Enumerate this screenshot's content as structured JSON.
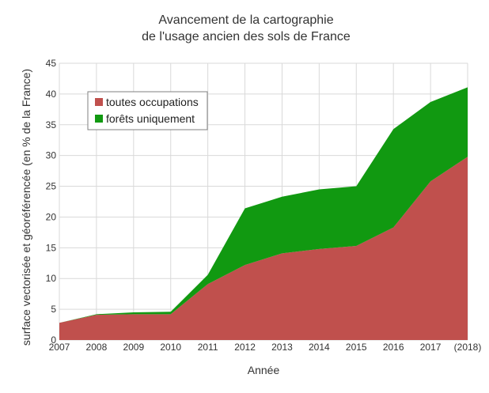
{
  "chart_data": {
    "type": "area",
    "stacked": true,
    "title": "Avancement de la cartographie",
    "subtitle": "de l'usage ancien des sols de France",
    "xlabel": "Année",
    "ylabel": "surface vectorisée et géoréférencée (en % de la France)",
    "categories": [
      "2007",
      "2008",
      "2009",
      "2010",
      "2011",
      "2012",
      "2013",
      "2014",
      "2015",
      "2016",
      "2017",
      "(2018)"
    ],
    "y_ticks": [
      "0",
      "5",
      "10",
      "15",
      "20",
      "25",
      "30",
      "35",
      "40",
      "45"
    ],
    "ylim": [
      0,
      45
    ],
    "grid": true,
    "legend_position": "top-left",
    "series": [
      {
        "name": "toutes occupations",
        "color": "#c0504d",
        "values": [
          2.8,
          4.1,
          4.2,
          4.2,
          9.1,
          12.2,
          14.1,
          14.8,
          15.3,
          18.3,
          25.8,
          29.8
        ]
      },
      {
        "name": "forêts uniquement",
        "color": "#119911",
        "values": [
          0.0,
          0.1,
          0.3,
          0.4,
          1.5,
          9.2,
          9.2,
          9.7,
          9.7,
          16.0,
          12.9,
          11.3
        ]
      }
    ]
  }
}
